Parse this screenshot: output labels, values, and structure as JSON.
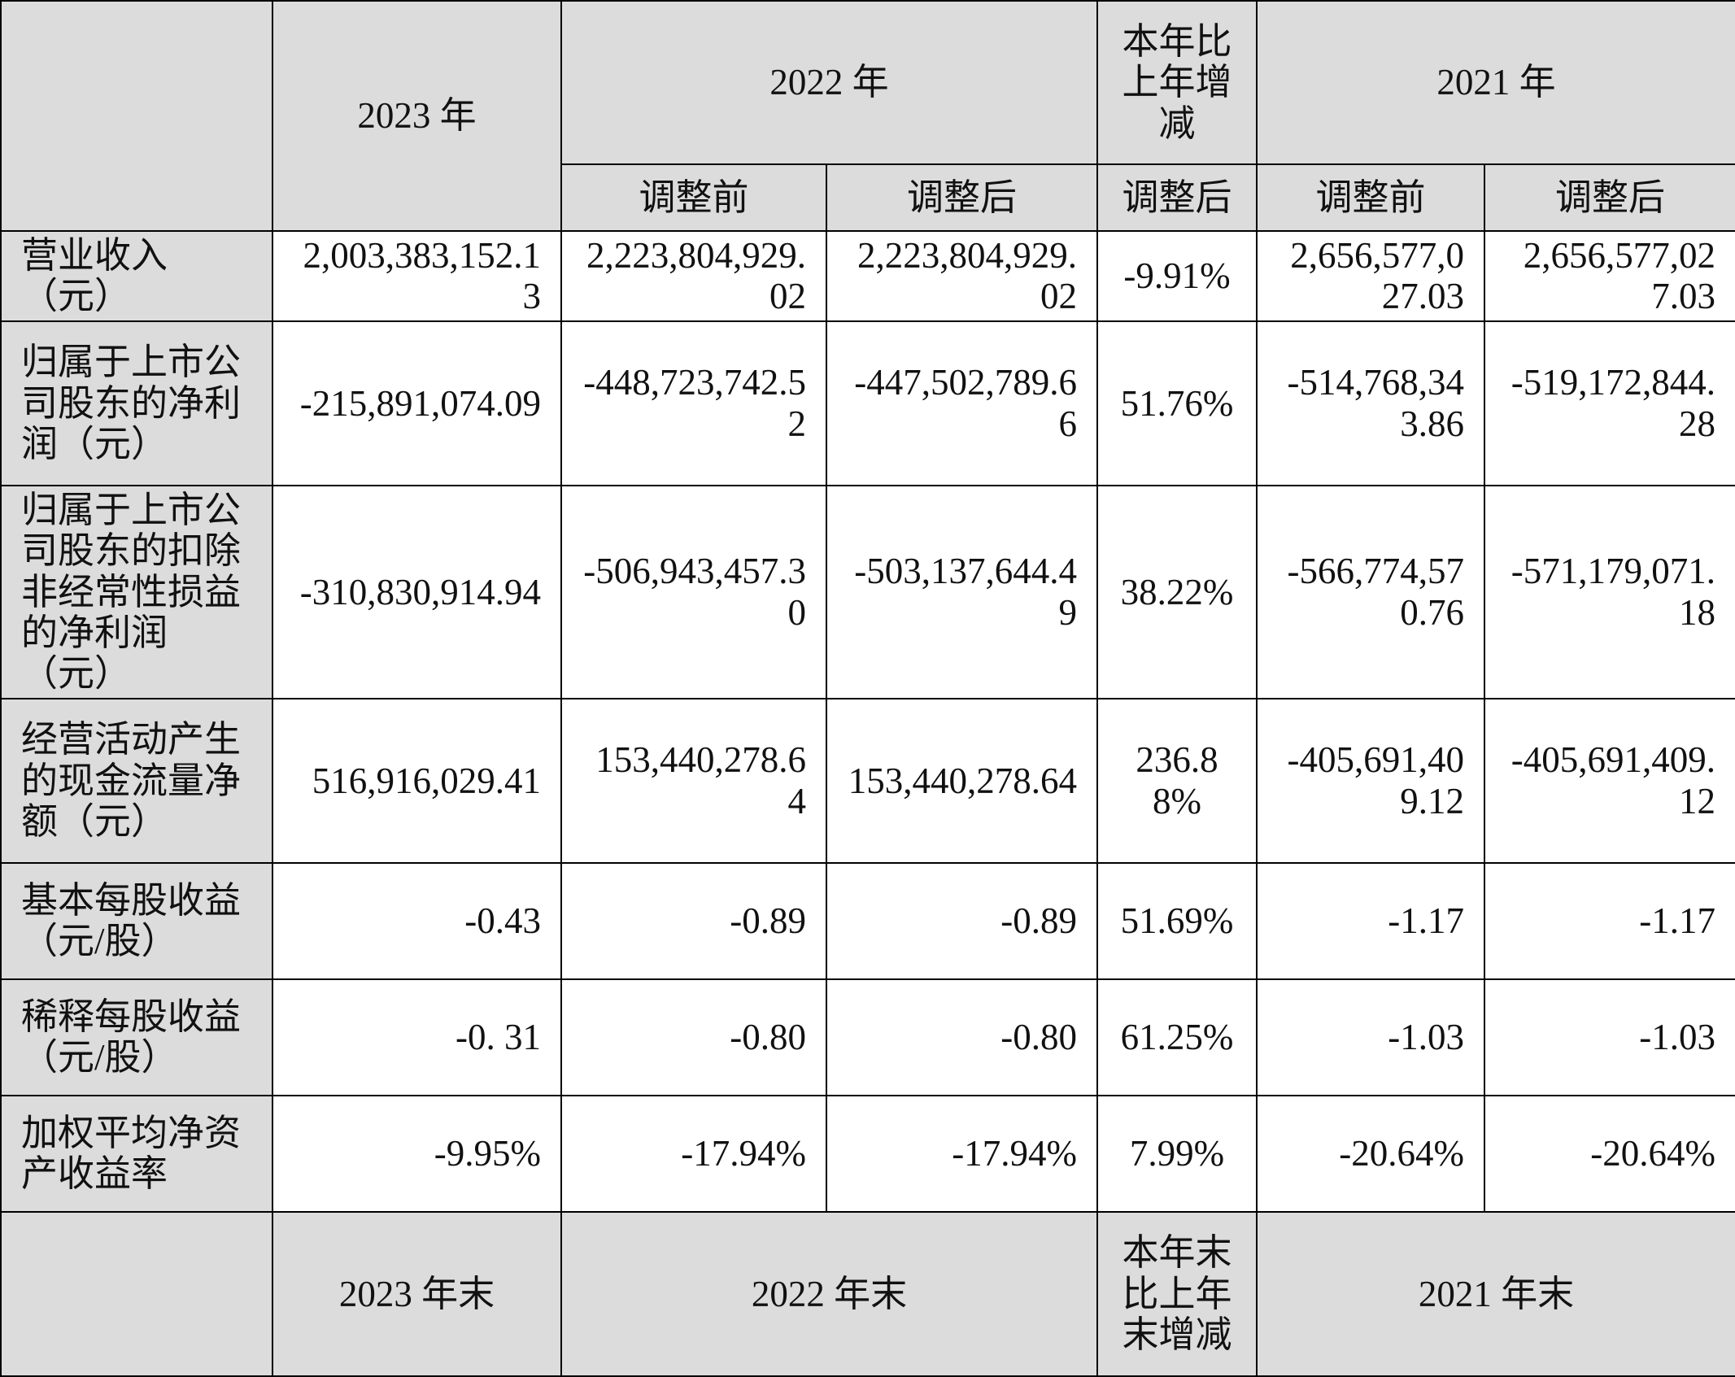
{
  "header": {
    "y2023": "2023 年",
    "y2022": "2022 年",
    "yoy": "本年比上年增减",
    "y2021": "2021 年",
    "before": "调整前",
    "after": "调整后"
  },
  "rows": [
    {
      "label": "营业收入（元）",
      "v2023": "2,003,383,152.13",
      "v2022_before": "2,223,804,929.02",
      "v2022_after": "2,223,804,929.02",
      "change": "-9.91%",
      "v2021_before": "2,656,577,027.03",
      "v2021_after": "2,656,577,027.03"
    },
    {
      "label": "归属于上市公司股东的净利润（元）",
      "v2023": "-215,891,074.09",
      "v2022_before": "-448,723,742.52",
      "v2022_after": "-447,502,789.66",
      "change": "51.76%",
      "v2021_before": "-514,768,343.86",
      "v2021_after": "-519,172,844.28"
    },
    {
      "label": "归属于上市公司股东的扣除非经常性损益的净利润（元）",
      "v2023": "-310,830,914.94",
      "v2022_before": "-506,943,457.30",
      "v2022_after": "-503,137,644.49",
      "change": "38.22%",
      "v2021_before": "-566,774,570.76",
      "v2021_after": "-571,179,071.18"
    },
    {
      "label": "经营活动产生的现金流量净额（元）",
      "v2023": "516,916,029.41",
      "v2022_before": "153,440,278.64",
      "v2022_after": "153,440,278.64",
      "change": "236.88%",
      "v2021_before": "-405,691,409.12",
      "v2021_after": "-405,691,409.12"
    },
    {
      "label": "基本每股收益（元/股）",
      "v2023": "-0.43",
      "v2022_before": "-0.89",
      "v2022_after": "-0.89",
      "change": "51.69%",
      "v2021_before": "-1.17",
      "v2021_after": "-1.17"
    },
    {
      "label": "稀释每股收益（元/股）",
      "v2023": "-0. 31",
      "v2022_before": "-0.80",
      "v2022_after": "-0.80",
      "change": "61.25%",
      "v2021_before": "-1.03",
      "v2021_after": "-1.03"
    },
    {
      "label": "加权平均净资产收益率",
      "v2023": "-9.95%",
      "v2022_before": "-17.94%",
      "v2022_after": "-17.94%",
      "change": "7.99%",
      "v2021_before": "-20.64%",
      "v2021_after": "-20.64%"
    }
  ],
  "footer_header": {
    "y2023_end": "2023 年末",
    "y2022_end": "2022 年末",
    "yoy_end": "本年末比上年末增减",
    "y2021_end": "2021 年末"
  }
}
